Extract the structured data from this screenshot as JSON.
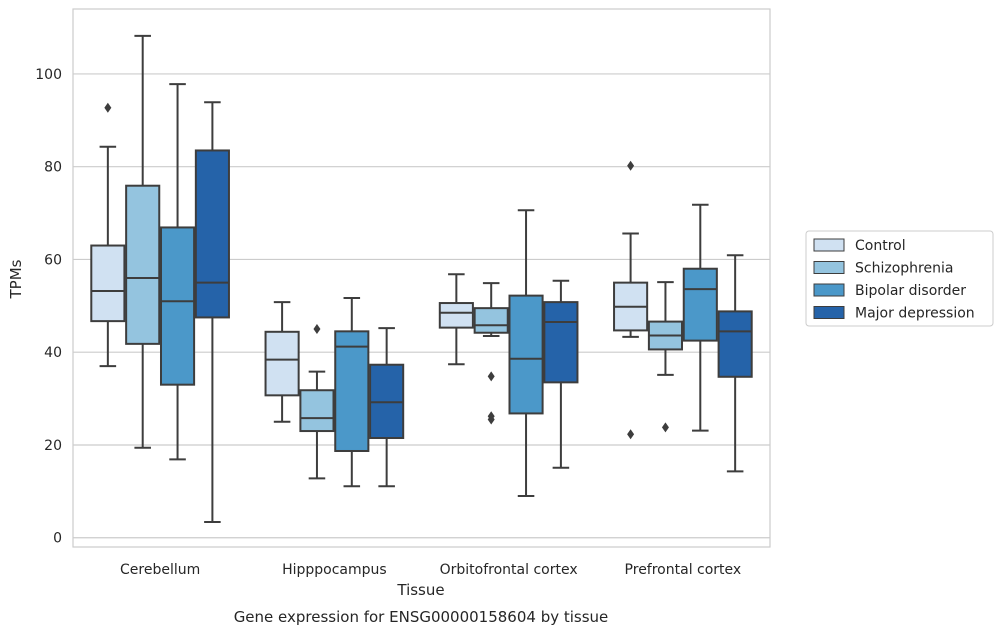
{
  "chart_data": {
    "type": "boxplot",
    "caption": "Gene expression for ENSG00000158604 by tissue",
    "xlabel": "Tissue",
    "ylabel": "TPMs",
    "ylim": [
      -2,
      114
    ],
    "yticks": [
      0,
      20,
      40,
      60,
      80,
      100
    ],
    "grid": "horizontal",
    "legend_position": "right",
    "categories": [
      "Cerebellum",
      "Hipppocampus",
      "Orbitofrontal cortex",
      "Prefrontal cortex"
    ],
    "series": [
      {
        "name": "Control",
        "color": "#d0e1f2",
        "boxes": [
          {
            "min": 37,
            "q1": 46.7,
            "median": 53.2,
            "q3": 63,
            "max": 84.3,
            "outliers": [
              92.7
            ]
          },
          {
            "min": 25,
            "q1": 30.7,
            "median": 38.4,
            "q3": 44.4,
            "max": 50.8,
            "outliers": []
          },
          {
            "min": 37.4,
            "q1": 45.3,
            "median": 48.5,
            "q3": 50.6,
            "max": 56.8,
            "outliers": []
          },
          {
            "min": 43.3,
            "q1": 44.7,
            "median": 49.8,
            "q3": 55,
            "max": 65.6,
            "outliers": [
              80.2,
              22.3
            ]
          }
        ]
      },
      {
        "name": "Schizophrenia",
        "color": "#94c4df",
        "boxes": [
          {
            "min": 19.4,
            "q1": 41.8,
            "median": 56,
            "q3": 75.9,
            "max": 108.2,
            "outliers": []
          },
          {
            "min": 12.8,
            "q1": 23,
            "median": 25.8,
            "q3": 31.8,
            "max": 35.8,
            "outliers": [
              45
            ]
          },
          {
            "min": 43.5,
            "q1": 44.2,
            "median": 45.8,
            "q3": 49.5,
            "max": 54.9,
            "outliers": [
              34.8,
              26.2,
              25.5
            ]
          },
          {
            "min": 35.1,
            "q1": 40.6,
            "median": 43.6,
            "q3": 46.6,
            "max": 55.1,
            "outliers": [
              23.8
            ]
          }
        ]
      },
      {
        "name": "Bipolar disorder",
        "color": "#4b98c9",
        "boxes": [
          {
            "min": 16.9,
            "q1": 33,
            "median": 51,
            "q3": 66.9,
            "max": 97.8,
            "outliers": []
          },
          {
            "min": 11.1,
            "q1": 18.7,
            "median": 41.2,
            "q3": 44.5,
            "max": 51.7,
            "outliers": []
          },
          {
            "min": 9,
            "q1": 26.8,
            "median": 38.6,
            "q3": 52.2,
            "max": 70.6,
            "outliers": []
          },
          {
            "min": 23.1,
            "q1": 42.5,
            "median": 53.6,
            "q3": 58,
            "max": 71.8,
            "outliers": []
          }
        ]
      },
      {
        "name": "Major depression",
        "color": "#2563a9",
        "boxes": [
          {
            "min": 3.4,
            "q1": 47.5,
            "median": 55,
            "q3": 83.5,
            "max": 93.9,
            "outliers": []
          },
          {
            "min": 11.1,
            "q1": 21.5,
            "median": 29.2,
            "q3": 37.3,
            "max": 45.2,
            "outliers": []
          },
          {
            "min": 15.1,
            "q1": 33.5,
            "median": 46.5,
            "q3": 50.8,
            "max": 55.4,
            "outliers": []
          },
          {
            "min": 14.3,
            "q1": 34.7,
            "median": 44.5,
            "q3": 48.8,
            "max": 60.9,
            "outliers": []
          }
        ]
      }
    ]
  }
}
